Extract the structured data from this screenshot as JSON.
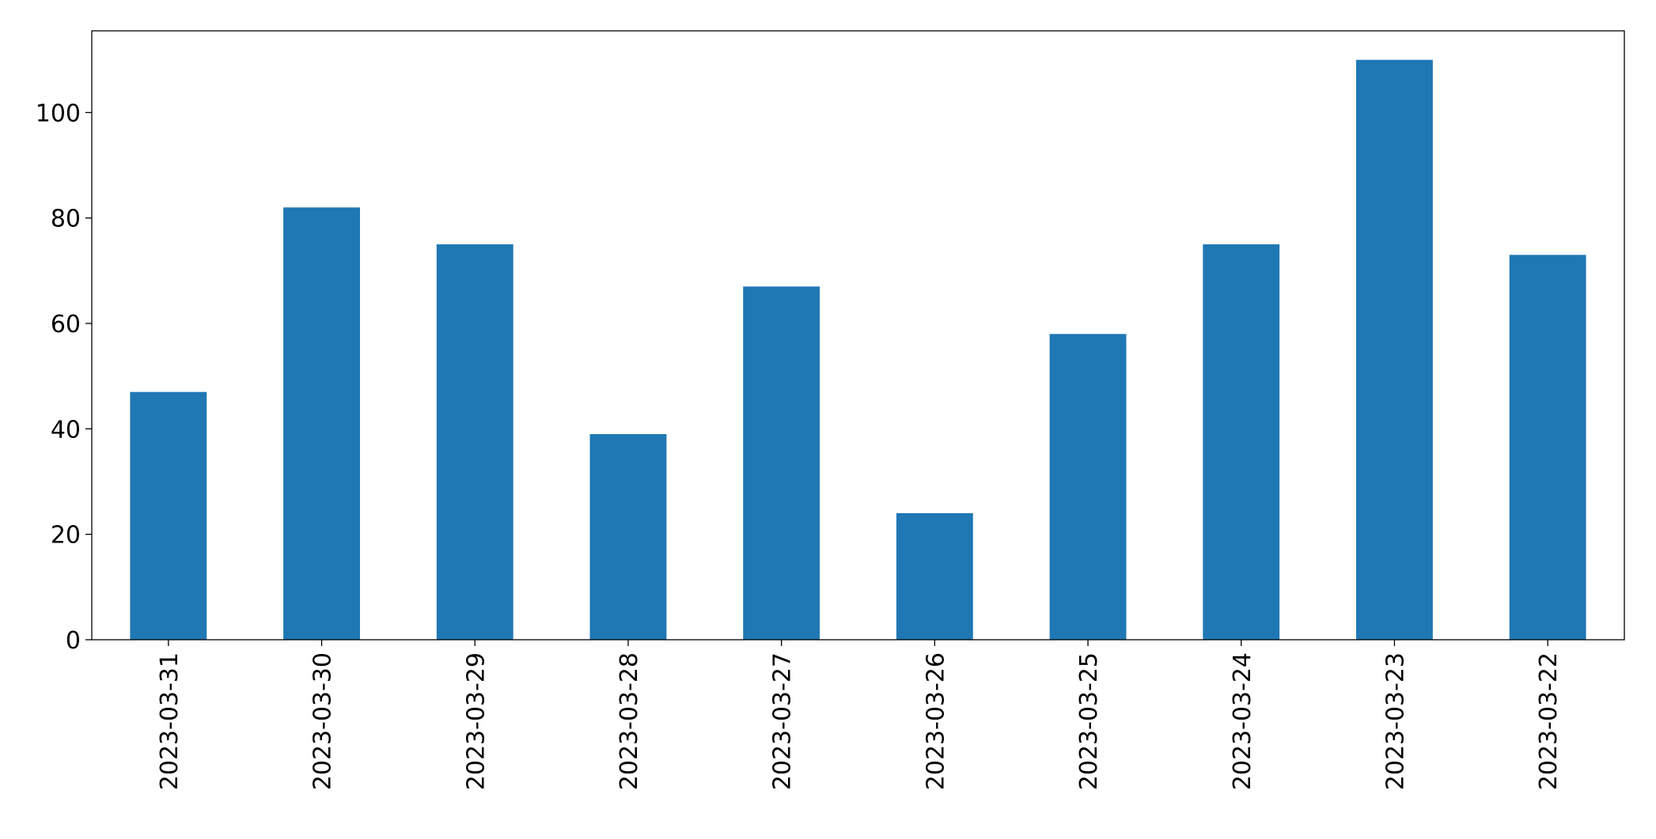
{
  "chart_data": {
    "type": "bar",
    "categories": [
      "2023-03-31",
      "2023-03-30",
      "2023-03-29",
      "2023-03-28",
      "2023-03-27",
      "2023-03-26",
      "2023-03-25",
      "2023-03-24",
      "2023-03-23",
      "2023-03-22"
    ],
    "values": [
      47,
      82,
      75,
      39,
      67,
      24,
      58,
      75,
      110,
      73
    ],
    "color": "#1f77b4",
    "ylim": [
      0,
      115.5
    ],
    "yticks": [
      0,
      20,
      40,
      60,
      80,
      100
    ],
    "grid": false
  }
}
